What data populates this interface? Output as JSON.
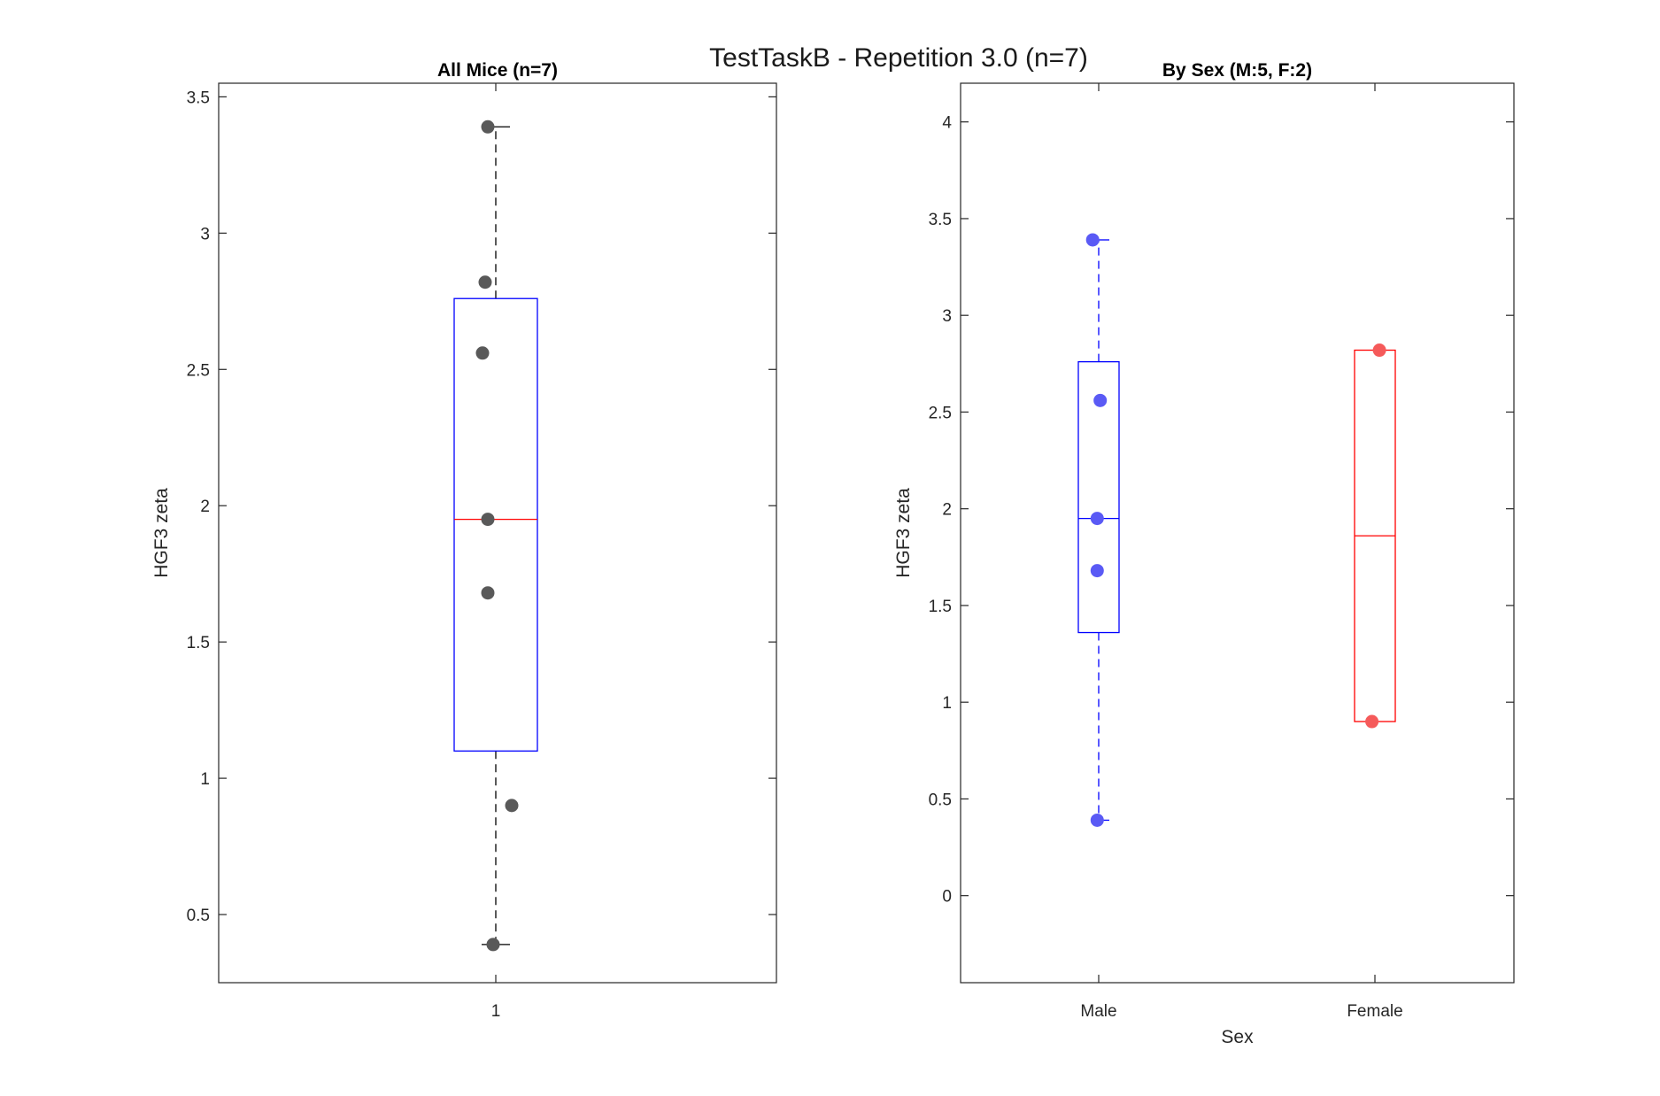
{
  "figure_title": "TestTaskB - Repetition 3.0 (n=7)",
  "chart_data": [
    {
      "type": "boxplot",
      "title": "All Mice (n=7)",
      "xlabel": "",
      "ylabel": "HGF3 zeta",
      "ylim": [
        0.25,
        3.55
      ],
      "yticks": [
        0.5,
        1,
        1.5,
        2,
        2.5,
        3,
        3.5
      ],
      "ytick_labels": [
        "0.5",
        "1",
        "1.5",
        "2",
        "2.5",
        "3",
        "3.5"
      ],
      "categories": [
        "1"
      ],
      "boxes": [
        {
          "category": "1",
          "whisker_low": 0.39,
          "q1": 1.1,
          "median": 1.95,
          "q3": 2.76,
          "whisker_high": 3.39,
          "box_color": "#0000ff",
          "median_color": "#ff0000",
          "whisker_color": "#000000"
        }
      ],
      "points": [
        {
          "category": "1",
          "x_jitter": -0.03,
          "y": 3.39,
          "color": "#595959"
        },
        {
          "category": "1",
          "x_jitter": -0.04,
          "y": 2.82,
          "color": "#595959"
        },
        {
          "category": "1",
          "x_jitter": -0.05,
          "y": 2.56,
          "color": "#595959"
        },
        {
          "category": "1",
          "x_jitter": -0.03,
          "y": 1.95,
          "color": "#595959"
        },
        {
          "category": "1",
          "x_jitter": -0.03,
          "y": 1.68,
          "color": "#595959"
        },
        {
          "category": "1",
          "x_jitter": 0.06,
          "y": 0.9,
          "color": "#595959"
        },
        {
          "category": "1",
          "x_jitter": -0.01,
          "y": 0.39,
          "color": "#595959"
        }
      ]
    },
    {
      "type": "boxplot",
      "title": "By Sex (M:5, F:2)",
      "xlabel": "Sex",
      "ylabel": "HGF3 zeta",
      "ylim": [
        -0.45,
        4.2
      ],
      "yticks": [
        0,
        0.5,
        1,
        1.5,
        2,
        2.5,
        3,
        3.5,
        4
      ],
      "ytick_labels": [
        "0",
        "0.5",
        "1",
        "1.5",
        "2",
        "2.5",
        "3",
        "3.5",
        "4"
      ],
      "categories": [
        "Male",
        "Female"
      ],
      "boxes": [
        {
          "category": "Male",
          "whisker_low": 0.39,
          "q1": 1.36,
          "median": 1.95,
          "q3": 2.76,
          "whisker_high": 3.39,
          "box_color": "#0000ff",
          "median_color": "#0000ff",
          "whisker_color": "#0000ff"
        },
        {
          "category": "Female",
          "whisker_low": 0.9,
          "q1": 0.9,
          "median": 1.86,
          "q3": 2.82,
          "whisker_high": 2.82,
          "box_color": "#ff0000",
          "median_color": "#ff0000",
          "whisker_color": "#ff0000"
        }
      ],
      "points": [
        {
          "category": "Male",
          "x_jitter": -0.04,
          "y": 3.39,
          "color": "#5a5af5"
        },
        {
          "category": "Male",
          "x_jitter": 0.01,
          "y": 2.56,
          "color": "#5a5af5"
        },
        {
          "category": "Male",
          "x_jitter": -0.01,
          "y": 1.95,
          "color": "#5a5af5"
        },
        {
          "category": "Male",
          "x_jitter": -0.01,
          "y": 1.68,
          "color": "#5a5af5"
        },
        {
          "category": "Male",
          "x_jitter": -0.01,
          "y": 0.39,
          "color": "#5a5af5"
        },
        {
          "category": "Female",
          "x_jitter": 0.03,
          "y": 2.82,
          "color": "#f55a5a"
        },
        {
          "category": "Female",
          "x_jitter": -0.02,
          "y": 0.9,
          "color": "#f55a5a"
        }
      ]
    }
  ]
}
